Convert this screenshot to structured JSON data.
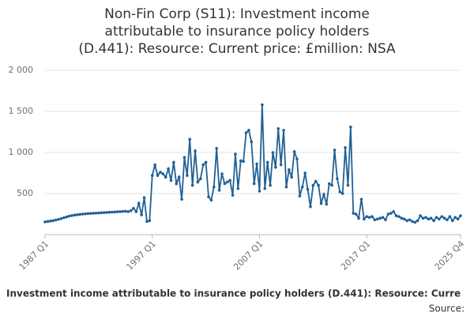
{
  "chart_data": {
    "type": "line",
    "title": "Non-Fin Corp (S11): Investment income attributable to insurance policy holders (D.441): Resource: Current price: £million: NSA",
    "categories": [
      "1987 Q1",
      null,
      null,
      null,
      null,
      null,
      null,
      null,
      null,
      null,
      null,
      null,
      null,
      null,
      null,
      null,
      null,
      null,
      null,
      null,
      null,
      null,
      null,
      null,
      null,
      null,
      null,
      null,
      null,
      null,
      null,
      null,
      null,
      null,
      null,
      null,
      null,
      null,
      null,
      null,
      "1997 Q1",
      null,
      null,
      null,
      null,
      null,
      null,
      null,
      null,
      null,
      null,
      null,
      null,
      null,
      null,
      null,
      null,
      null,
      null,
      null,
      null,
      null,
      null,
      null,
      null,
      null,
      null,
      null,
      null,
      null,
      null,
      null,
      null,
      null,
      null,
      null,
      null,
      null,
      null,
      null,
      "2007 Q1",
      null,
      null,
      null,
      null,
      null,
      null,
      null,
      null,
      null,
      null,
      null,
      null,
      null,
      null,
      null,
      null,
      null,
      null,
      null,
      null,
      null,
      null,
      null,
      null,
      null,
      null,
      null,
      null,
      null,
      null,
      null,
      null,
      null,
      null,
      null,
      null,
      null,
      null,
      null,
      "2017 Q1",
      null,
      null,
      null,
      null,
      null,
      null,
      null,
      null,
      null,
      null,
      null,
      null,
      null,
      null,
      null,
      null,
      null,
      null,
      null,
      null,
      null,
      null,
      null,
      null,
      null,
      null,
      null,
      null,
      null,
      null,
      null,
      null,
      null,
      null,
      "2025 Q4"
    ],
    "series": [
      {
        "name": "Investment income attributable to insurance policy holders (D.441): Resource: Curre",
        "color": "#206095",
        "values": [
          155,
          160,
          165,
          170,
          178,
          185,
          195,
          205,
          215,
          225,
          232,
          238,
          242,
          246,
          250,
          253,
          256,
          258,
          260,
          262,
          264,
          266,
          268,
          270,
          272,
          274,
          276,
          278,
          280,
          282,
          284,
          280,
          290,
          320,
          280,
          380,
          240,
          450,
          160,
          170,
          720,
          850,
          720,
          760,
          740,
          700,
          800,
          660,
          880,
          620,
          700,
          430,
          940,
          720,
          1160,
          600,
          1020,
          640,
          680,
          850,
          880,
          460,
          420,
          580,
          1050,
          540,
          740,
          620,
          640,
          660,
          480,
          980,
          560,
          900,
          890,
          1240,
          1270,
          1130,
          620,
          860,
          530,
          1580,
          560,
          880,
          600,
          1000,
          820,
          1290,
          850,
          1270,
          580,
          790,
          700,
          1010,
          920,
          470,
          580,
          750,
          550,
          340,
          600,
          650,
          600,
          380,
          490,
          370,
          620,
          600,
          1030,
          680,
          520,
          500,
          1060,
          600,
          1310,
          260,
          250,
          200,
          430,
          190,
          220,
          210,
          220,
          180,
          190,
          200,
          210,
          180,
          250,
          260,
          280,
          230,
          220,
          200,
          190,
          170,
          180,
          160,
          150,
          170,
          230,
          200,
          210,
          190,
          200,
          170,
          210,
          190,
          220,
          200,
          180,
          220,
          170,
          210,
          190,
          230
        ]
      }
    ],
    "ylim": [
      0,
      2000
    ],
    "yticks": [
      500,
      {
        "value": 1000,
        "label": "1 000"
      },
      {
        "value": 1500,
        "label": "1 500"
      },
      {
        "value": 2000,
        "label": "2 000"
      }
    ],
    "grid": true,
    "source": "Source:"
  }
}
